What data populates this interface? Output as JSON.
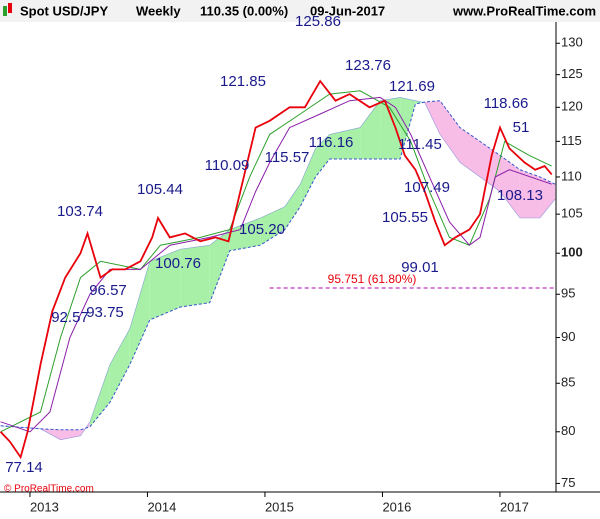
{
  "header": {
    "symbol": "Spot USD/JPY",
    "period": "Weekly",
    "quote": "110.35 (0.00%)",
    "date": "09-Jun-2017",
    "site": "www.ProRealTime.com"
  },
  "footer": "© ProRealTime.com",
  "chart_data": {
    "type": "line",
    "log_scale": true,
    "xlim": [
      2012.745,
      2017.477
    ],
    "xticks": [
      2013,
      2014,
      2015,
      2016,
      2017
    ],
    "ylim": [
      74.2,
      133.5
    ],
    "yticks": [
      75,
      80,
      85,
      90,
      95,
      100,
      105,
      110,
      115,
      120,
      125,
      130
    ],
    "series": [
      {
        "name": "Price",
        "color": "#e8000b",
        "x": [
          2012.75,
          2012.83,
          2012.92,
          2012.98,
          2013.09,
          2013.19,
          2013.3,
          2013.43,
          2013.49,
          2013.6,
          2013.7,
          2013.81,
          2013.94,
          2014.04,
          2014.09,
          2014.19,
          2014.32,
          2014.45,
          2014.58,
          2014.69,
          2014.79,
          2014.92,
          2015.04,
          2015.21,
          2015.34,
          2015.47,
          2015.6,
          2015.72,
          2015.89,
          2016.02,
          2016.11,
          2016.19,
          2016.28,
          2016.36,
          2016.45,
          2016.53,
          2016.62,
          2016.74,
          2016.83,
          2016.93,
          2017.0,
          2017.08,
          2017.21,
          2017.3,
          2017.38,
          2017.44
        ],
        "values": [
          80,
          79,
          77.5,
          80,
          87,
          93,
          97,
          100,
          102.5,
          97,
          98,
          98,
          99,
          102,
          104.5,
          102,
          102.5,
          101.5,
          102,
          101.5,
          108,
          117,
          118,
          120,
          120,
          124,
          121,
          122,
          120,
          121,
          117,
          113,
          111,
          108,
          104,
          101,
          102,
          103,
          105,
          113,
          117,
          114,
          112,
          111,
          111.5,
          110.35
        ]
      },
      {
        "name": "Short MA",
        "color": "#2ca02c",
        "x": [
          2012.75,
          2013.09,
          2013.26,
          2013.43,
          2013.6,
          2013.94,
          2014.11,
          2014.45,
          2014.7,
          2014.87,
          2015.04,
          2015.3,
          2015.55,
          2015.81,
          2016.06,
          2016.24,
          2016.4,
          2016.57,
          2016.74,
          2016.91,
          2017.04,
          2017.25,
          2017.44
        ],
        "values": [
          80,
          82,
          90,
          97,
          99,
          98,
          101,
          102,
          103,
          110,
          116,
          119,
          122,
          122.5,
          120,
          115,
          108,
          102,
          101,
          107,
          115,
          113,
          111.5
        ]
      },
      {
        "name": "Long MA",
        "color": "#8a1fa8",
        "x": [
          2012.75,
          2013.0,
          2013.17,
          2013.34,
          2013.51,
          2013.68,
          2013.94,
          2014.19,
          2014.53,
          2014.79,
          2014.92,
          2015.04,
          2015.21,
          2015.47,
          2015.72,
          2015.98,
          2016.11,
          2016.24,
          2016.4,
          2016.57,
          2016.74,
          2016.83,
          2016.96,
          2017.08,
          2017.44
        ],
        "values": [
          81,
          80,
          82,
          90,
          95,
          98,
          98,
          101,
          102,
          103,
          108,
          112,
          117,
          119,
          121,
          121.5,
          120,
          116,
          110,
          104,
          101,
          102,
          110,
          111,
          109
        ]
      }
    ],
    "cloud": {
      "bull_color": "#a8f0a8",
      "bear_color": "#f7bde6",
      "edge_color": "#3355cc",
      "x": [
        2012.75,
        2013.09,
        2013.26,
        2013.43,
        2013.51,
        2013.68,
        2013.85,
        2014.02,
        2014.28,
        2014.53,
        2014.7,
        2014.96,
        2015.17,
        2015.3,
        2015.43,
        2015.55,
        2015.81,
        2015.98,
        2016.15,
        2016.28,
        2016.36,
        2016.49,
        2016.66,
        2016.83,
        2017.0,
        2017.17,
        2017.34,
        2017.47
      ],
      "span_a": [
        80.6,
        80.3,
        79.2,
        79.6,
        81,
        87,
        91,
        99,
        100.5,
        101,
        103,
        104.5,
        106,
        109,
        114,
        116,
        117,
        121,
        121.5,
        121,
        120.7,
        116,
        112,
        110,
        108,
        104.5,
        104.5,
        107
      ],
      "span_b": [
        80.6,
        80.3,
        80.2,
        80.2,
        80.5,
        83,
        87,
        92,
        93.5,
        94,
        100.3,
        101,
        103,
        106,
        110,
        112.5,
        112.5,
        112.5,
        112.5,
        120.5,
        120.8,
        121,
        117,
        115,
        113,
        111,
        110,
        109
      ]
    },
    "fib": {
      "value": 95.751,
      "label": "95.751 (61.80%)",
      "x_start": 2015.04,
      "color": "#b000b0",
      "label_color": "#e8000b"
    },
    "annotations": [
      "125.86",
      "123.76",
      "121.85",
      "121.69",
      "118.66",
      "51",
      "116.16",
      "115.57",
      "111.45",
      "110.09",
      "105.44",
      "107.49",
      "108.13",
      "103.74",
      "105.55",
      "105.20",
      "100.76",
      "99.01",
      "96.57",
      "92.57",
      "93.75",
      "77.14"
    ]
  }
}
